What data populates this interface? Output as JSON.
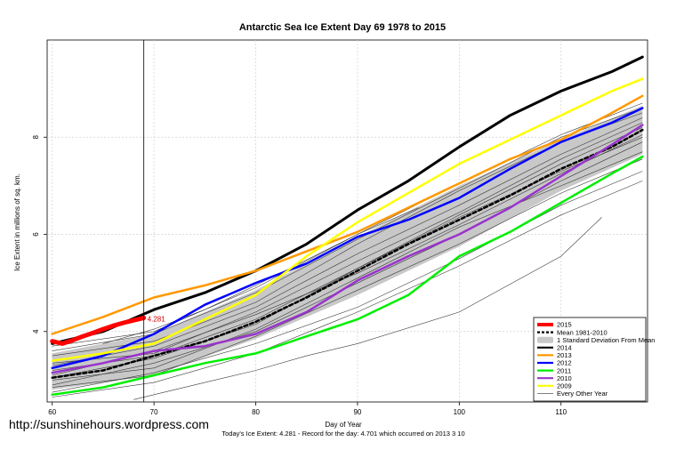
{
  "chart_data": {
    "type": "line",
    "title": "Antarctic Sea Ice Extent Day 69 1978 to 2015",
    "xlabel": "Day of Year",
    "ylabel": "Ice Extent in millions of sq. km.",
    "xlim": [
      59.5,
      118.5
    ],
    "ylim": [
      2.55,
      10.0
    ],
    "x_ticks": [
      60,
      70,
      80,
      90,
      100,
      110
    ],
    "y_ticks": [
      4,
      6,
      8
    ],
    "grid": true,
    "vline_x": 69,
    "value_label": "4.281",
    "legend_position": "bottom-right",
    "legend": [
      {
        "label": "2015",
        "color": "#ff0000",
        "style": "thick"
      },
      {
        "label": "Mean 1981-2010",
        "color": "#000000",
        "style": "dashed"
      },
      {
        "label": "1 Standard Deviation From Mean",
        "color": "#c8c8c8",
        "style": "band"
      },
      {
        "label": "2014",
        "color": "#000000",
        "style": "line"
      },
      {
        "label": "2013",
        "color": "#ff9900",
        "style": "line"
      },
      {
        "label": "2012",
        "color": "#0000ff",
        "style": "line"
      },
      {
        "label": "2011",
        "color": "#00ee00",
        "style": "line"
      },
      {
        "label": "2010",
        "color": "#9933cc",
        "style": "line"
      },
      {
        "label": "2009",
        "color": "#ffff00",
        "style": "line"
      },
      {
        "label": "Every Other Year",
        "color": "#555555",
        "style": "thin"
      }
    ],
    "band": {
      "x": [
        60,
        70,
        80,
        90,
        100,
        110,
        118
      ],
      "upper": [
        3.55,
        3.95,
        4.85,
        5.95,
        7.0,
        7.95,
        8.65
      ],
      "lower": [
        2.8,
        3.1,
        3.85,
        4.75,
        5.75,
        6.9,
        7.65
      ]
    },
    "series": [
      {
        "name": "Mean 1981-2010",
        "color": "#000000",
        "width": 2.5,
        "dash": "4,3",
        "x": [
          60,
          65,
          70,
          75,
          80,
          85,
          90,
          95,
          100,
          105,
          110,
          115,
          118
        ],
        "y": [
          3.05,
          3.2,
          3.5,
          3.8,
          4.2,
          4.7,
          5.25,
          5.8,
          6.3,
          6.8,
          7.35,
          7.8,
          8.15
        ]
      },
      {
        "name": "2014",
        "color": "#000000",
        "width": 3,
        "x": [
          60,
          65,
          70,
          75,
          80,
          85,
          90,
          95,
          100,
          105,
          110,
          115,
          118
        ],
        "y": [
          3.75,
          4.0,
          4.45,
          4.8,
          5.25,
          5.8,
          6.5,
          7.1,
          7.8,
          8.45,
          8.95,
          9.35,
          9.65
        ]
      },
      {
        "name": "2013",
        "color": "#ff9900",
        "width": 2.5,
        "x": [
          60,
          65,
          70,
          75,
          80,
          85,
          90,
          95,
          100,
          105,
          110,
          115,
          118
        ],
        "y": [
          3.95,
          4.3,
          4.7,
          4.95,
          5.25,
          5.65,
          6.05,
          6.55,
          7.05,
          7.55,
          7.95,
          8.5,
          8.85
        ]
      },
      {
        "name": "2012",
        "color": "#0000ff",
        "width": 2.5,
        "x": [
          60,
          65,
          70,
          75,
          80,
          85,
          90,
          95,
          100,
          105,
          110,
          115,
          118
        ],
        "y": [
          3.25,
          3.5,
          3.95,
          4.55,
          5.0,
          5.4,
          5.95,
          6.3,
          6.75,
          7.35,
          7.9,
          8.3,
          8.6
        ]
      },
      {
        "name": "2011",
        "color": "#00ee00",
        "width": 2.5,
        "x": [
          60,
          65,
          70,
          75,
          80,
          85,
          90,
          95,
          100,
          105,
          110,
          115,
          118
        ],
        "y": [
          2.7,
          2.85,
          3.1,
          3.35,
          3.55,
          3.9,
          4.25,
          4.75,
          5.55,
          6.05,
          6.65,
          7.25,
          7.6
        ]
      },
      {
        "name": "2010",
        "color": "#9933cc",
        "width": 2.5,
        "x": [
          60,
          65,
          70,
          75,
          80,
          85,
          90,
          95,
          100,
          105,
          110,
          115,
          118
        ],
        "y": [
          3.15,
          3.35,
          3.6,
          3.7,
          3.95,
          4.4,
          5.05,
          5.55,
          6.0,
          6.55,
          7.2,
          7.85,
          8.25
        ]
      },
      {
        "name": "2009",
        "color": "#ffff00",
        "width": 2.5,
        "x": [
          60,
          65,
          70,
          75,
          80,
          85,
          90,
          95,
          100,
          105,
          110,
          115,
          118
        ],
        "y": [
          3.4,
          3.55,
          3.75,
          4.25,
          4.75,
          5.55,
          6.25,
          6.85,
          7.45,
          7.95,
          8.45,
          8.95,
          9.2
        ]
      },
      {
        "name": "2015",
        "color": "#ff0000",
        "width": 5,
        "x": [
          60,
          61,
          62,
          63,
          64,
          65,
          66,
          67,
          68,
          69
        ],
        "y": [
          3.8,
          3.75,
          3.82,
          3.9,
          3.97,
          4.05,
          4.12,
          4.18,
          4.23,
          4.281
        ]
      }
    ],
    "other_years": [
      {
        "x": [
          60,
          70,
          80,
          90,
          100,
          110,
          118
        ],
        "y": [
          3.05,
          3.45,
          4.15,
          5.3,
          6.4,
          7.45,
          8.2
        ]
      },
      {
        "x": [
          60,
          70,
          80,
          90,
          100,
          110,
          118
        ],
        "y": [
          2.75,
          3.15,
          3.75,
          4.5,
          5.5,
          6.6,
          7.3
        ]
      },
      {
        "x": [
          60,
          70,
          80,
          90,
          100,
          110,
          118
        ],
        "y": [
          3.3,
          3.7,
          4.5,
          5.6,
          6.6,
          7.65,
          8.4
        ]
      },
      {
        "x": [
          60,
          70,
          80,
          90,
          100,
          110,
          118
        ],
        "y": [
          2.9,
          3.35,
          4.0,
          5.0,
          6.0,
          7.1,
          7.9
        ]
      },
      {
        "x": [
          60,
          70,
          80,
          90,
          100,
          110,
          118
        ],
        "y": [
          3.5,
          3.8,
          4.6,
          5.8,
          6.9,
          7.9,
          8.5
        ]
      },
      {
        "x": [
          60,
          70,
          80,
          90,
          100,
          110,
          118
        ],
        "y": [
          3.1,
          3.6,
          4.35,
          5.2,
          6.2,
          7.25,
          8.05
        ]
      },
      {
        "x": [
          60,
          70,
          80,
          90,
          100,
          110,
          118
        ],
        "y": [
          2.65,
          2.95,
          3.55,
          4.4,
          5.35,
          6.4,
          7.1
        ]
      },
      {
        "x": [
          60,
          70,
          80,
          90,
          100,
          110,
          118
        ],
        "y": [
          3.6,
          3.95,
          4.8,
          5.9,
          6.95,
          8.0,
          8.6
        ]
      },
      {
        "x": [
          60,
          70,
          80,
          90,
          100,
          110,
          118
        ],
        "y": [
          3.0,
          3.25,
          4.05,
          5.1,
          6.15,
          7.0,
          7.7
        ]
      },
      {
        "x": [
          60,
          70,
          80,
          90,
          100,
          110,
          118
        ],
        "y": [
          3.35,
          3.55,
          4.4,
          5.45,
          6.45,
          7.55,
          8.3
        ]
      },
      {
        "x": [
          60,
          70,
          80,
          90,
          100,
          110,
          118
        ],
        "y": [
          2.85,
          3.1,
          3.9,
          4.85,
          5.8,
          6.85,
          7.55
        ]
      },
      {
        "x": [
          60,
          70,
          80,
          90,
          100,
          110,
          118
        ],
        "y": [
          3.7,
          4.0,
          4.9,
          6.0,
          7.05,
          8.05,
          8.7
        ]
      },
      {
        "x": [
          60,
          70,
          80,
          90,
          100,
          110,
          118
        ],
        "y": [
          3.2,
          3.5,
          4.25,
          5.3,
          6.35,
          7.3,
          8.0
        ]
      },
      {
        "x": [
          68,
          75,
          80,
          85,
          90,
          100,
          110,
          114
        ],
        "y": [
          2.6,
          2.95,
          3.2,
          3.5,
          3.75,
          4.4,
          5.55,
          6.35
        ]
      },
      {
        "x": [
          65,
          70,
          75,
          80,
          90,
          96
        ],
        "y": [
          3.75,
          4.05,
          4.45,
          4.95,
          6.0,
          6.55
        ]
      }
    ]
  },
  "footer": {
    "record_text": "Today's Ice Extent: 4.281  - Record for the day: 4.701 which occurred on 2013 3 10"
  },
  "watermark": "http://sunshinehours.wordpress.com"
}
